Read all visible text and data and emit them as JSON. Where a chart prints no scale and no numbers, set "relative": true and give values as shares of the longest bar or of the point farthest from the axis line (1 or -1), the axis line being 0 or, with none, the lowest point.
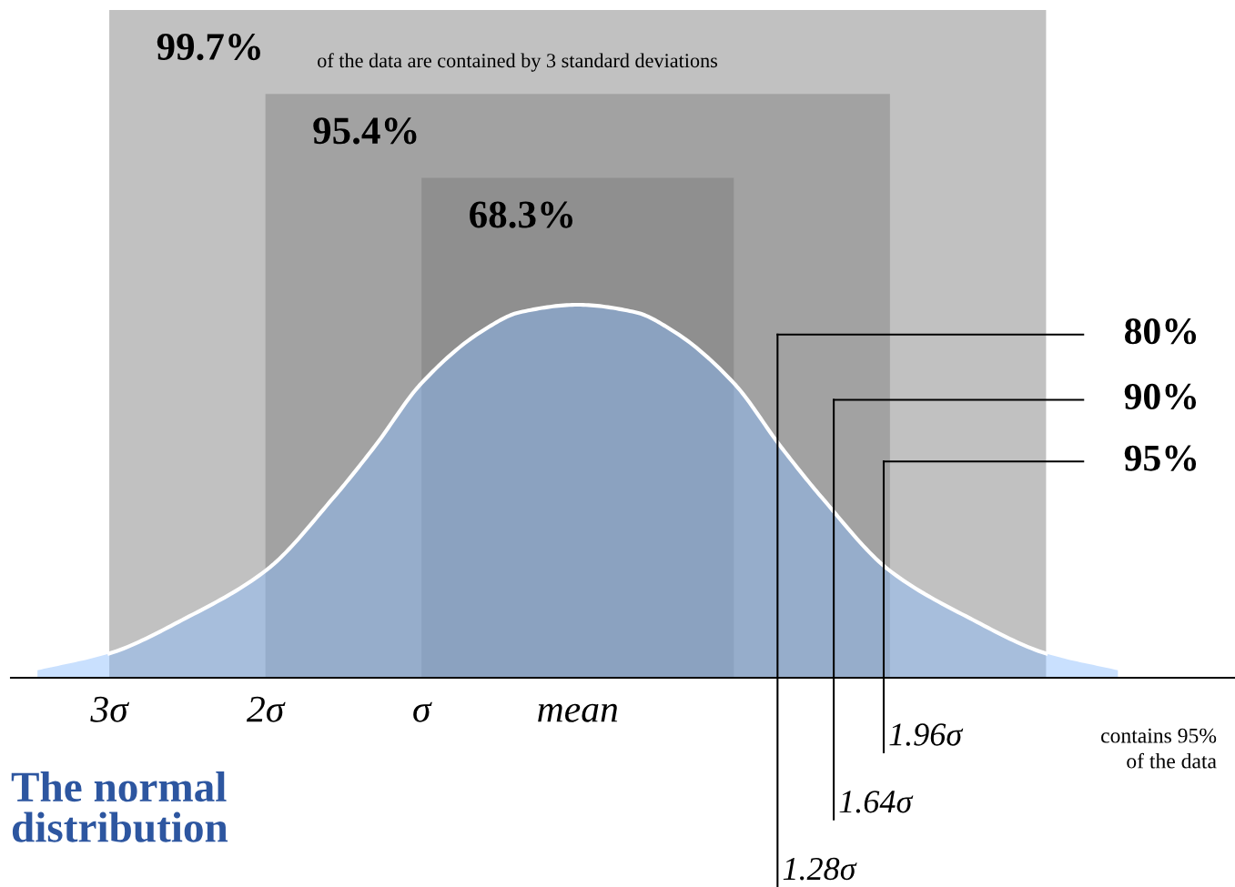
{
  "chart_data": {
    "type": "area",
    "title": "The normal distribution",
    "relative": true,
    "tick_labels": "x",
    "xlim": [
      -3.63,
      4.21
    ],
    "xticks": [
      {
        "value": -3,
        "label": "3σ"
      },
      {
        "value": -2,
        "label": "2σ"
      },
      {
        "value": -1,
        "label": "σ"
      },
      {
        "value": 0,
        "label": "mean"
      }
    ],
    "series": [
      {
        "color": "#88bbfc",
        "x": [
          -3.46,
          -3.0,
          -2.51,
          -1.99,
          -1.57,
          -1.3,
          -1.0,
          -0.61,
          -0.37,
          0,
          0.37,
          0.61,
          1.0,
          1.3,
          1.57,
          1.99,
          2.51,
          3.0,
          3.46
        ],
        "values": [
          0.02,
          0.065,
          0.16,
          0.29,
          0.48,
          0.62,
          0.79,
          0.93,
          0.98,
          1,
          0.98,
          0.93,
          0.79,
          0.62,
          0.48,
          0.29,
          0.16,
          0.065,
          0.02
        ]
      }
    ],
    "bands": [
      {
        "axis": "x",
        "from": -3,
        "to": 3,
        "label": "99.7%",
        "color": "#c1c1c1"
      },
      {
        "axis": "x",
        "from": -2,
        "to": 2,
        "label": "95.4%",
        "color": "#a2a2a2"
      },
      {
        "axis": "x",
        "from": -1,
        "to": 1,
        "label": "68.3%",
        "color": "#8f8f8f"
      }
    ],
    "ref_lines": [
      {
        "axis": "x",
        "value": 1.28,
        "label": "1.28σ",
        "color": "#000000"
      },
      {
        "axis": "x",
        "value": 1.64,
        "label": "1.64σ",
        "color": "#000000"
      },
      {
        "axis": "x",
        "value": 1.96,
        "label": "1.96σ",
        "color": "#000000"
      }
    ],
    "annotations": [
      "of the data are contained by 3 standard deviations",
      "contains 95%\nof the data",
      {
        "text": "80%",
        "x": 1.28,
        "y": 0.92
      },
      {
        "text": "90%",
        "x": 1.64,
        "y": 0.745
      },
      {
        "text": "95%",
        "x": 1.96,
        "y": 0.58
      }
    ]
  }
}
